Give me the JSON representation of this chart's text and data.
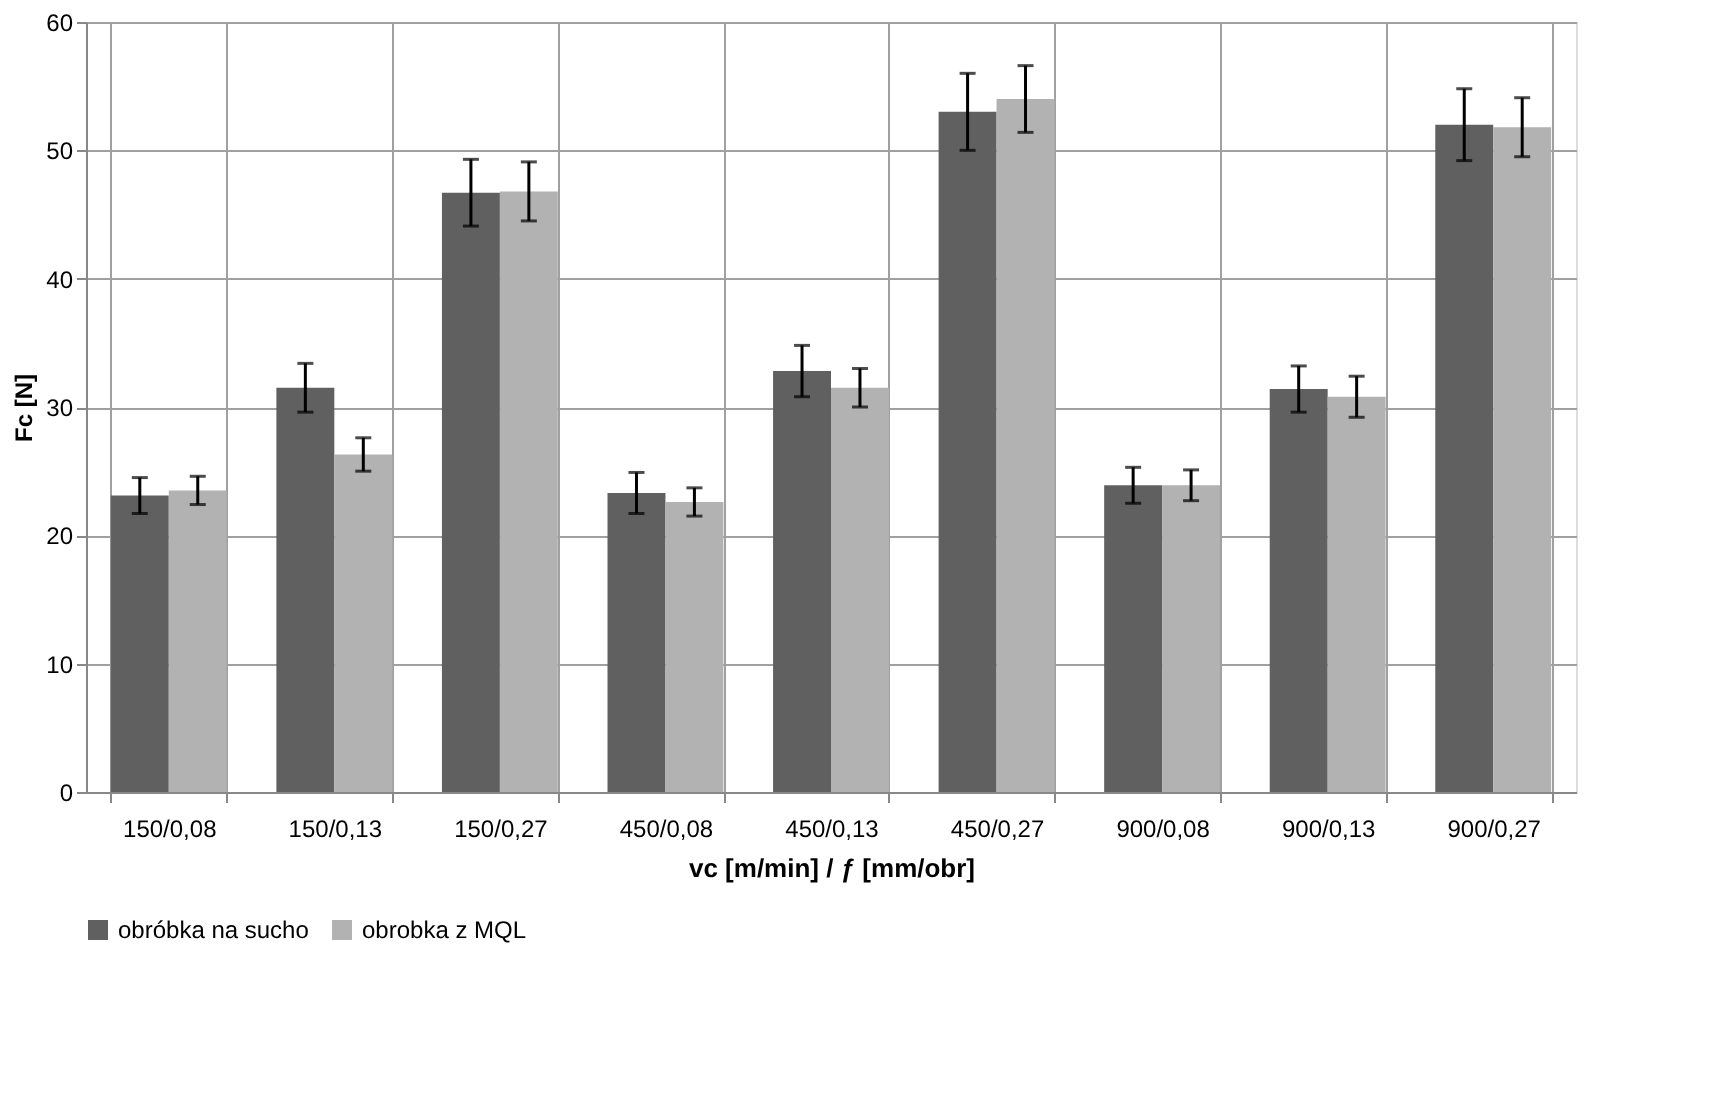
{
  "chart_data": {
    "type": "bar",
    "xlabel": "vc [m/min] / ƒ [mm/obr]",
    "ylabel": "Fc [N]",
    "categories": [
      "150/0,08",
      "150/0,13",
      "150/0,27",
      "450/0,08",
      "450/0,13",
      "450/0,27",
      "900/0,08",
      "900/0,13",
      "900/0,27"
    ],
    "series": [
      {
        "name": "obróbka na sucho",
        "color": "#606060",
        "values": [
          23.1,
          31.5,
          46.7,
          23.3,
          32.8,
          53.0,
          23.9,
          31.4,
          52.0
        ],
        "errors": [
          1.4,
          1.9,
          2.6,
          1.6,
          2.0,
          3.0,
          1.4,
          1.8,
          2.8
        ]
      },
      {
        "name": "obrobka z MQL",
        "color": "#b2b2b2",
        "values": [
          23.5,
          26.3,
          46.8,
          22.6,
          31.5,
          54.0,
          23.9,
          30.8,
          51.8
        ],
        "errors": [
          1.1,
          1.3,
          2.3,
          1.1,
          1.5,
          2.6,
          1.2,
          1.6,
          2.3
        ]
      }
    ],
    "ylim": [
      0,
      60
    ],
    "yticks": [
      0,
      10,
      20,
      30,
      40,
      50,
      60
    ],
    "grid": true,
    "legend": "bottom"
  }
}
